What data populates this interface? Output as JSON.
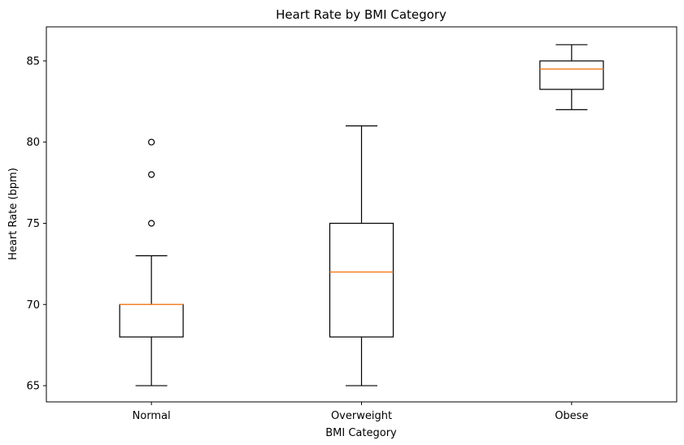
{
  "chart_data": {
    "type": "box",
    "title": "Heart Rate by BMI Category",
    "xlabel": "BMI Category",
    "ylabel": "Heart Rate (bpm)",
    "ylim": [
      64,
      87.1
    ],
    "yticks": [
      65,
      70,
      75,
      80,
      85
    ],
    "categories": [
      "Normal",
      "Overweight",
      "Obese"
    ],
    "boxes": [
      {
        "category": "Normal",
        "whisker_low": 65,
        "q1": 68,
        "median": 70,
        "q3": 70,
        "whisker_high": 73,
        "outliers": [
          75,
          78,
          80
        ]
      },
      {
        "category": "Overweight",
        "whisker_low": 65,
        "q1": 68,
        "median": 72,
        "q3": 75,
        "whisker_high": 81,
        "outliers": []
      },
      {
        "category": "Obese",
        "whisker_low": 82,
        "q1": 83.25,
        "median": 84.5,
        "q3": 85,
        "whisker_high": 86,
        "outliers": []
      }
    ],
    "grid": false,
    "colors": {
      "box": "#000000",
      "median": "#f0822a",
      "background": "#ffffff"
    }
  }
}
